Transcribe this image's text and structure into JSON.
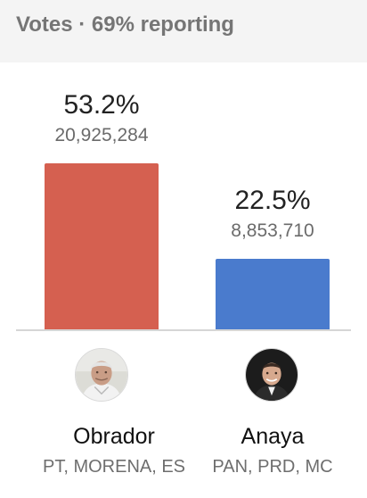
{
  "header": {
    "title": "Votes · 69% reporting"
  },
  "chart_data": {
    "type": "bar",
    "categories": [
      "Obrador",
      "Anaya"
    ],
    "values": [
      53.2,
      22.5
    ],
    "vote_counts": [
      "20,925,284",
      "8,853,710"
    ],
    "percent_labels": [
      "53.2%",
      "22.5%"
    ],
    "parties": [
      "PT, MORENA, ES",
      "PAN, PRD, MC"
    ],
    "colors": [
      "#d56050",
      "#4a7bcd"
    ],
    "title": "Votes · 69% reporting",
    "xlabel": "",
    "ylabel": "",
    "ylim": [
      0,
      53.2
    ],
    "grid": false,
    "legend": "none"
  },
  "candidates": [
    {
      "name": "Obrador",
      "party": "PT, MORENA, ES",
      "percent": "53.2%",
      "votes": "20,925,284",
      "color": "#d56050",
      "avatar_icon": "person-photo-icon"
    },
    {
      "name": "Anaya",
      "party": "PAN, PRD, MC",
      "percent": "22.5%",
      "votes": "8,853,710",
      "color": "#4a7bcd",
      "avatar_icon": "person-photo-icon"
    }
  ]
}
